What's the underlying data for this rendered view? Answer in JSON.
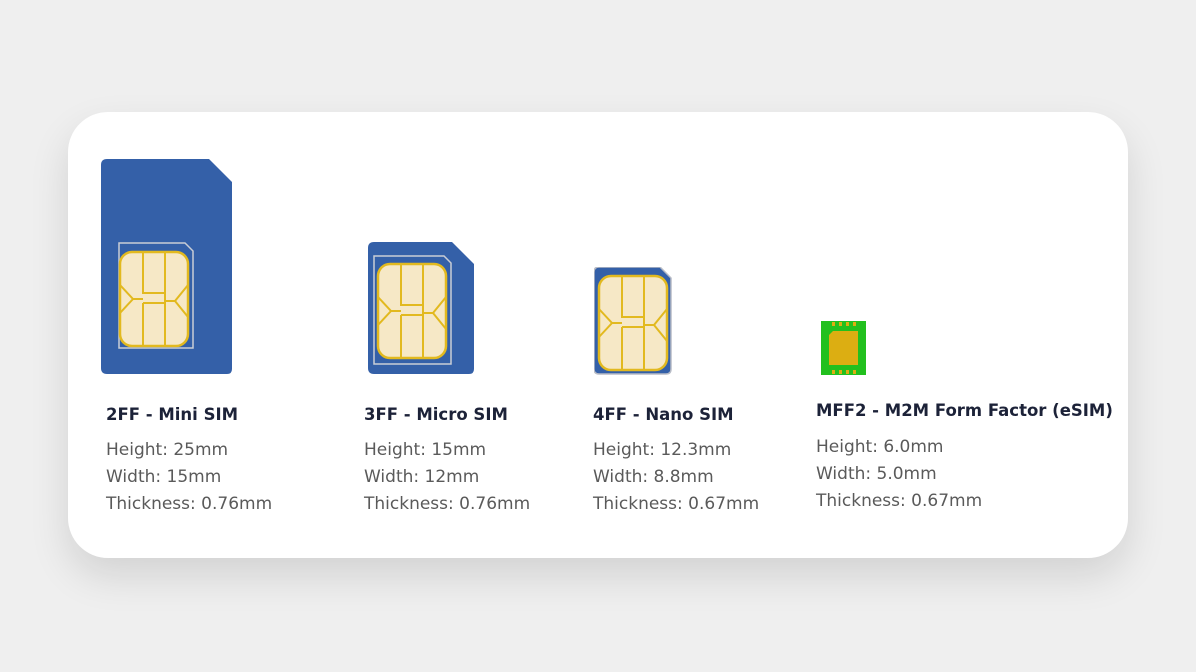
{
  "colors": {
    "sim_body": "#3460a8",
    "chip_fill": "#f6e8c6",
    "chip_line": "#e2b91f",
    "esim_frame": "#22c01e",
    "esim_core": "#dcae12"
  },
  "items": [
    {
      "title": "2FF - Mini SIM",
      "height": "Height: 25mm",
      "width": "Width: 15mm",
      "thickness": "Thickness: 0.76mm",
      "icon": "mini-sim-icon"
    },
    {
      "title": "3FF - Micro SIM",
      "height": "Height: 15mm",
      "width": "Width: 12mm",
      "thickness": "Thickness: 0.76mm",
      "icon": "micro-sim-icon"
    },
    {
      "title": "4FF - Nano SIM",
      "height": "Height: 12.3mm",
      "width": "Width: 8.8mm",
      "thickness": "Thickness: 0.67mm",
      "icon": "nano-sim-icon"
    },
    {
      "title": "MFF2 - M2M Form Factor (eSIM)",
      "height": "Height: 6.0mm",
      "width": "Width: 5.0mm",
      "thickness": "Thickness: 0.67mm",
      "icon": "esim-chip-icon"
    }
  ]
}
